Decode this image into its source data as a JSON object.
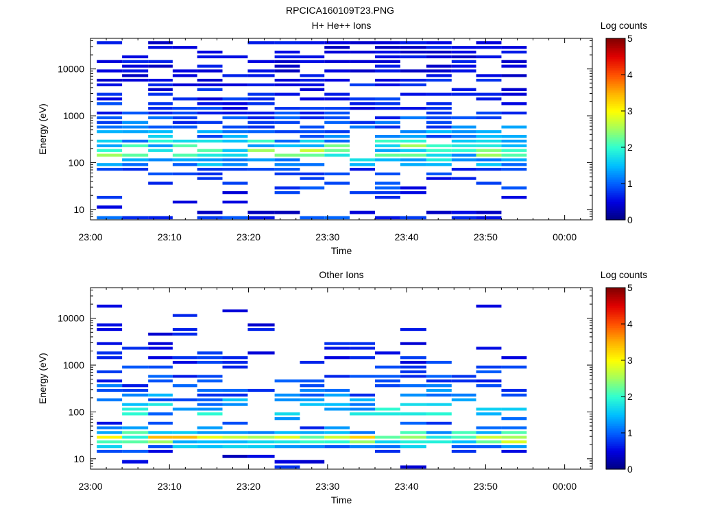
{
  "page_title": "RPCICA160109T23.PNG",
  "colorbar_ticks": [
    "0",
    "1",
    "2",
    "3",
    "4",
    "5"
  ],
  "colorbar_range": [
    0,
    5
  ],
  "colormap": [
    "#000080",
    "#0000e0",
    "#0060ff",
    "#00c0ff",
    "#30ffd0",
    "#a0ff60",
    "#ffff00",
    "#ffb000",
    "#ff5000",
    "#e00000",
    "#800000"
  ],
  "chart_data": [
    {
      "type": "heatmap",
      "title": "H+ He++ Ions",
      "xlabel": "Time",
      "ylabel": "Energy (eV)",
      "colorbar_label": "Log counts",
      "x_tick_labels": [
        "23:00",
        "23:10",
        "23:20",
        "23:30",
        "23:40",
        "23:50",
        "00:00"
      ],
      "x_ticks_min": [
        0,
        10,
        20,
        30,
        40,
        50,
        60
      ],
      "x_range_min": [
        0,
        63.5
      ],
      "y_scale": "log",
      "y_range": [
        6,
        45000
      ],
      "y_tick_labels": [
        "10",
        "100",
        "1000",
        "10000"
      ],
      "y_tick_values": [
        10,
        100,
        1000,
        10000
      ],
      "time_bins_min": [
        [
          0.8,
          4
        ],
        [
          4,
          7.3
        ],
        [
          7.3,
          10.4
        ],
        [
          10.4,
          13.5
        ],
        [
          13.5,
          16.7
        ],
        [
          16.7,
          19.9
        ],
        [
          19.9,
          23.3
        ],
        [
          23.3,
          26.5
        ],
        [
          26.5,
          29.6
        ],
        [
          29.6,
          32.8
        ],
        [
          32.8,
          36
        ],
        [
          36,
          39.2
        ],
        [
          39.2,
          42.5
        ],
        [
          42.5,
          45.7
        ],
        [
          45.7,
          48.8
        ],
        [
          48.8,
          52
        ],
        [
          52,
          55.2
        ]
      ],
      "energy_channels_eV": [
        7,
        9,
        12,
        15,
        19,
        24,
        30,
        38,
        48,
        60,
        75,
        95,
        120,
        150,
        190,
        240,
        300,
        380,
        480,
        600,
        750,
        950,
        1200,
        1500,
        1900,
        2400,
        3000,
        3800,
        4800,
        6000,
        7500,
        9500,
        12000,
        15000,
        19000,
        24000,
        30000,
        38000
      ],
      "seed": 7,
      "occupancy_by_channel": [
        0.45,
        0.25,
        0.15,
        0.18,
        0.2,
        0.3,
        0.35,
        0.3,
        0.3,
        0.45,
        0.55,
        0.7,
        0.75,
        0.8,
        0.8,
        0.75,
        0.7,
        0.7,
        0.65,
        0.65,
        0.6,
        0.6,
        0.6,
        0.55,
        0.6,
        0.55,
        0.6,
        0.55,
        0.55,
        0.55,
        0.5,
        0.6,
        0.55,
        0.5,
        0.5,
        0.5,
        0.45,
        0.6
      ],
      "peak_log_counts_by_channel": [
        1.0,
        0.5,
        0.5,
        0.6,
        0.7,
        0.8,
        0.9,
        0.9,
        0.9,
        0.9,
        1.0,
        1.4,
        1.8,
        2.2,
        2.4,
        2.2,
        1.8,
        1.5,
        1.3,
        1.2,
        1.1,
        1.0,
        0.9,
        0.8,
        0.8,
        0.8,
        0.7,
        0.7,
        0.7,
        0.7,
        0.6,
        0.6,
        0.6,
        0.6,
        0.6,
        0.6,
        0.6,
        0.6
      ]
    },
    {
      "type": "heatmap",
      "title": "Other Ions",
      "xlabel": "Time",
      "ylabel": "Energy (eV)",
      "colorbar_label": "Log counts",
      "x_tick_labels": [
        "23:00",
        "23:10",
        "23:20",
        "23:30",
        "23:40",
        "23:50",
        "00:00"
      ],
      "x_ticks_min": [
        0,
        10,
        20,
        30,
        40,
        50,
        60
      ],
      "x_range_min": [
        0,
        63.5
      ],
      "y_scale": "log",
      "y_range": [
        6,
        45000
      ],
      "y_tick_labels": [
        "10",
        "100",
        "1000",
        "10000"
      ],
      "y_tick_values": [
        10,
        100,
        1000,
        10000
      ],
      "time_bins_min": [
        [
          0.8,
          4
        ],
        [
          4,
          7.3
        ],
        [
          7.3,
          10.4
        ],
        [
          10.4,
          13.5
        ],
        [
          13.5,
          16.7
        ],
        [
          16.7,
          19.9
        ],
        [
          19.9,
          23.3
        ],
        [
          23.3,
          26.5
        ],
        [
          26.5,
          29.6
        ],
        [
          29.6,
          32.8
        ],
        [
          32.8,
          36
        ],
        [
          36,
          39.2
        ],
        [
          39.2,
          42.5
        ],
        [
          42.5,
          45.7
        ],
        [
          45.7,
          48.8
        ],
        [
          48.8,
          52
        ],
        [
          52,
          55.2
        ]
      ],
      "energy_channels_eV": [
        7,
        9,
        12,
        15,
        19,
        24,
        30,
        38,
        48,
        60,
        75,
        95,
        120,
        150,
        190,
        240,
        300,
        380,
        480,
        600,
        750,
        950,
        1200,
        1500,
        1900,
        2400,
        3000,
        3800,
        4800,
        6000,
        7500,
        9500,
        12000,
        15000,
        19000,
        24000,
        30000,
        38000
      ],
      "seed": 23,
      "occupancy_by_channel": [
        0.12,
        0.15,
        0.12,
        0.6,
        0.95,
        1.0,
        1.0,
        0.9,
        0.45,
        0.3,
        0.35,
        0.45,
        0.5,
        0.55,
        0.6,
        0.6,
        0.55,
        0.5,
        0.45,
        0.45,
        0.45,
        0.4,
        0.35,
        0.3,
        0.25,
        0.2,
        0.15,
        0.15,
        0.1,
        0.08,
        0.08,
        0.06,
        0.05,
        0.05,
        0.05,
        0.05,
        0.04,
        0.03
      ],
      "peak_log_counts_by_channel": [
        0.8,
        0.5,
        0.5,
        0.9,
        1.5,
        2.5,
        3.0,
        2.0,
        1.2,
        1.0,
        1.2,
        1.8,
        2.0,
        1.8,
        1.5,
        1.3,
        1.2,
        1.1,
        1.0,
        1.0,
        0.9,
        0.9,
        0.8,
        0.8,
        0.8,
        0.7,
        0.7,
        0.7,
        0.7,
        0.7,
        0.6,
        0.6,
        0.6,
        0.6,
        0.6,
        0.6,
        0.6,
        0.6
      ]
    }
  ]
}
